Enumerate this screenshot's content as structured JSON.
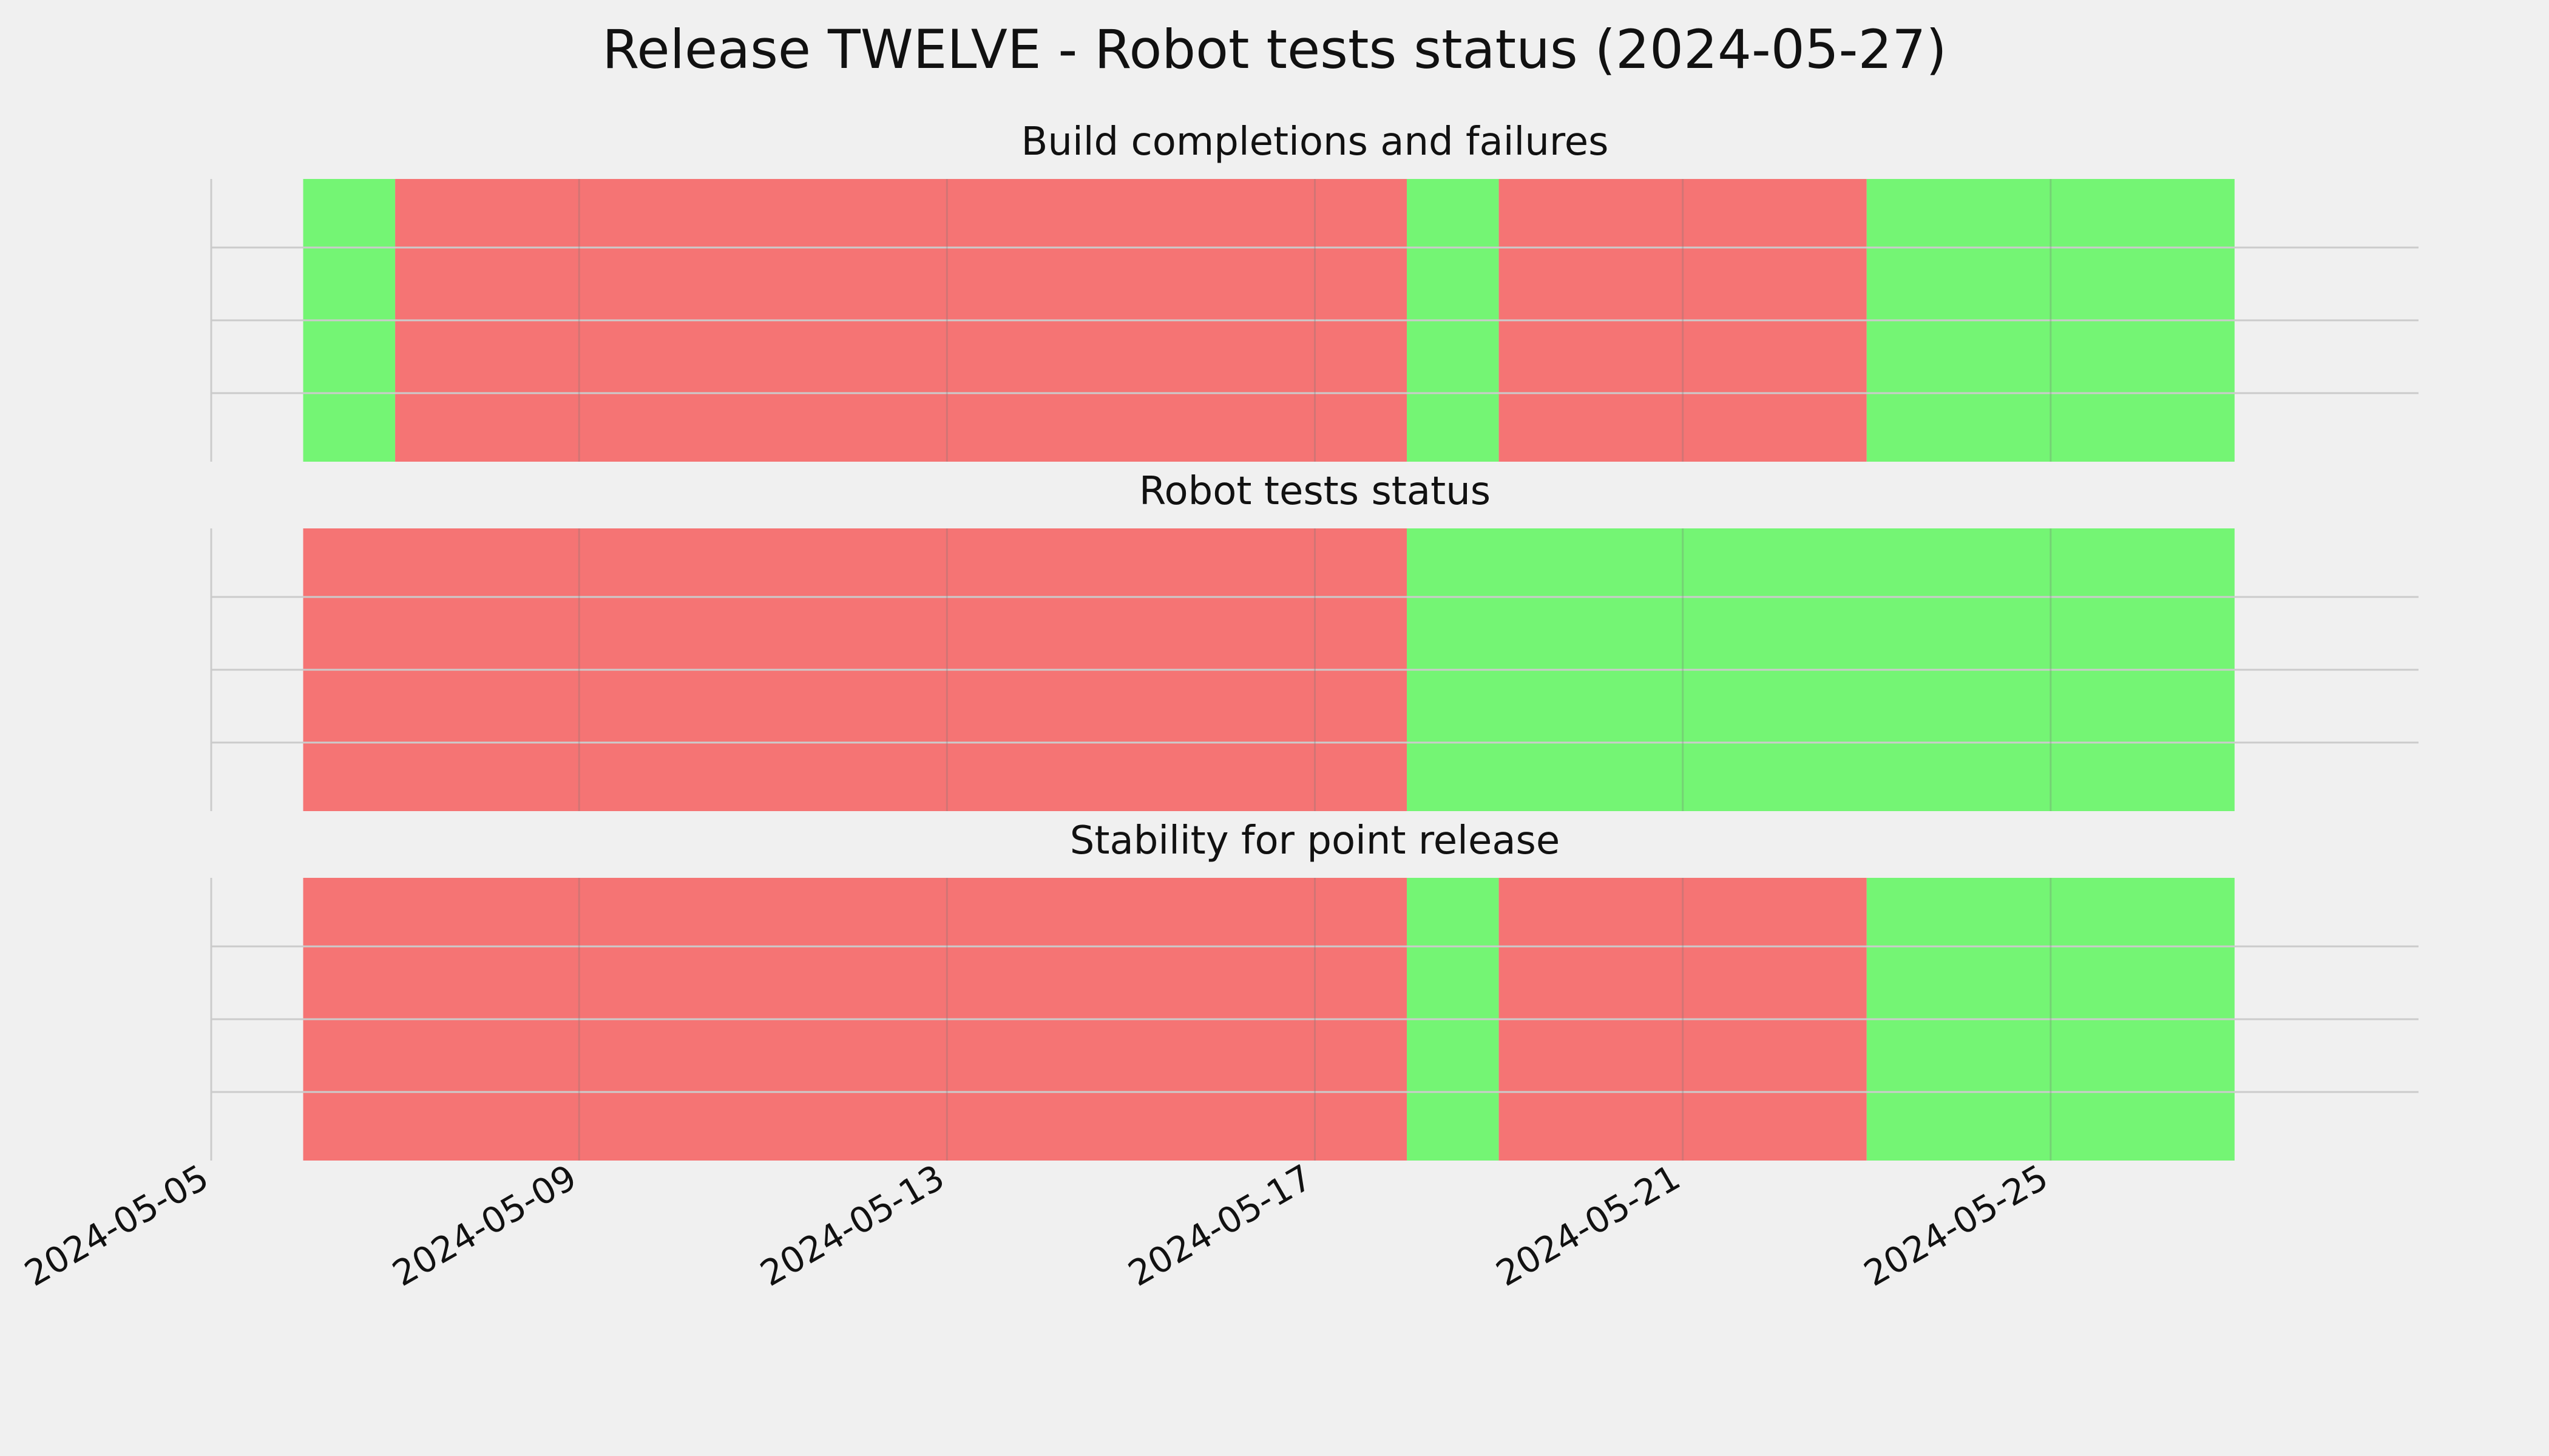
{
  "title": "Release TWELVE - Robot tests status (2024-05-27)",
  "colors": {
    "pass": "#74f574",
    "fail": "#f57474",
    "background": "#f0f0f0",
    "grid": "#cbcbcb"
  },
  "chart_data": {
    "type": "timeline",
    "x_axis": {
      "range": [
        "2024-05-05",
        "2024-05-29"
      ],
      "ticks": [
        "2024-05-05",
        "2024-05-09",
        "2024-05-13",
        "2024-05-17",
        "2024-05-21",
        "2024-05-25"
      ],
      "tick_rotation": "30°"
    },
    "panels": [
      {
        "title": "Build completions and failures",
        "segments": [
          {
            "start": "2024-05-06",
            "end": "2024-05-07",
            "status": "pass"
          },
          {
            "start": "2024-05-07",
            "end": "2024-05-18",
            "status": "fail"
          },
          {
            "start": "2024-05-18",
            "end": "2024-05-19",
            "status": "pass"
          },
          {
            "start": "2024-05-19",
            "end": "2024-05-23",
            "status": "fail"
          },
          {
            "start": "2024-05-23",
            "end": "2024-05-27",
            "status": "pass"
          }
        ]
      },
      {
        "title": "Robot tests status",
        "segments": [
          {
            "start": "2024-05-06",
            "end": "2024-05-18",
            "status": "fail"
          },
          {
            "start": "2024-05-18",
            "end": "2024-05-27",
            "status": "pass"
          }
        ]
      },
      {
        "title": "Stability for point release",
        "segments": [
          {
            "start": "2024-05-06",
            "end": "2024-05-18",
            "status": "fail"
          },
          {
            "start": "2024-05-18",
            "end": "2024-05-19",
            "status": "pass"
          },
          {
            "start": "2024-05-19",
            "end": "2024-05-23",
            "status": "fail"
          },
          {
            "start": "2024-05-23",
            "end": "2024-05-27",
            "status": "pass"
          }
        ]
      }
    ],
    "grid": true,
    "legend": "none"
  }
}
